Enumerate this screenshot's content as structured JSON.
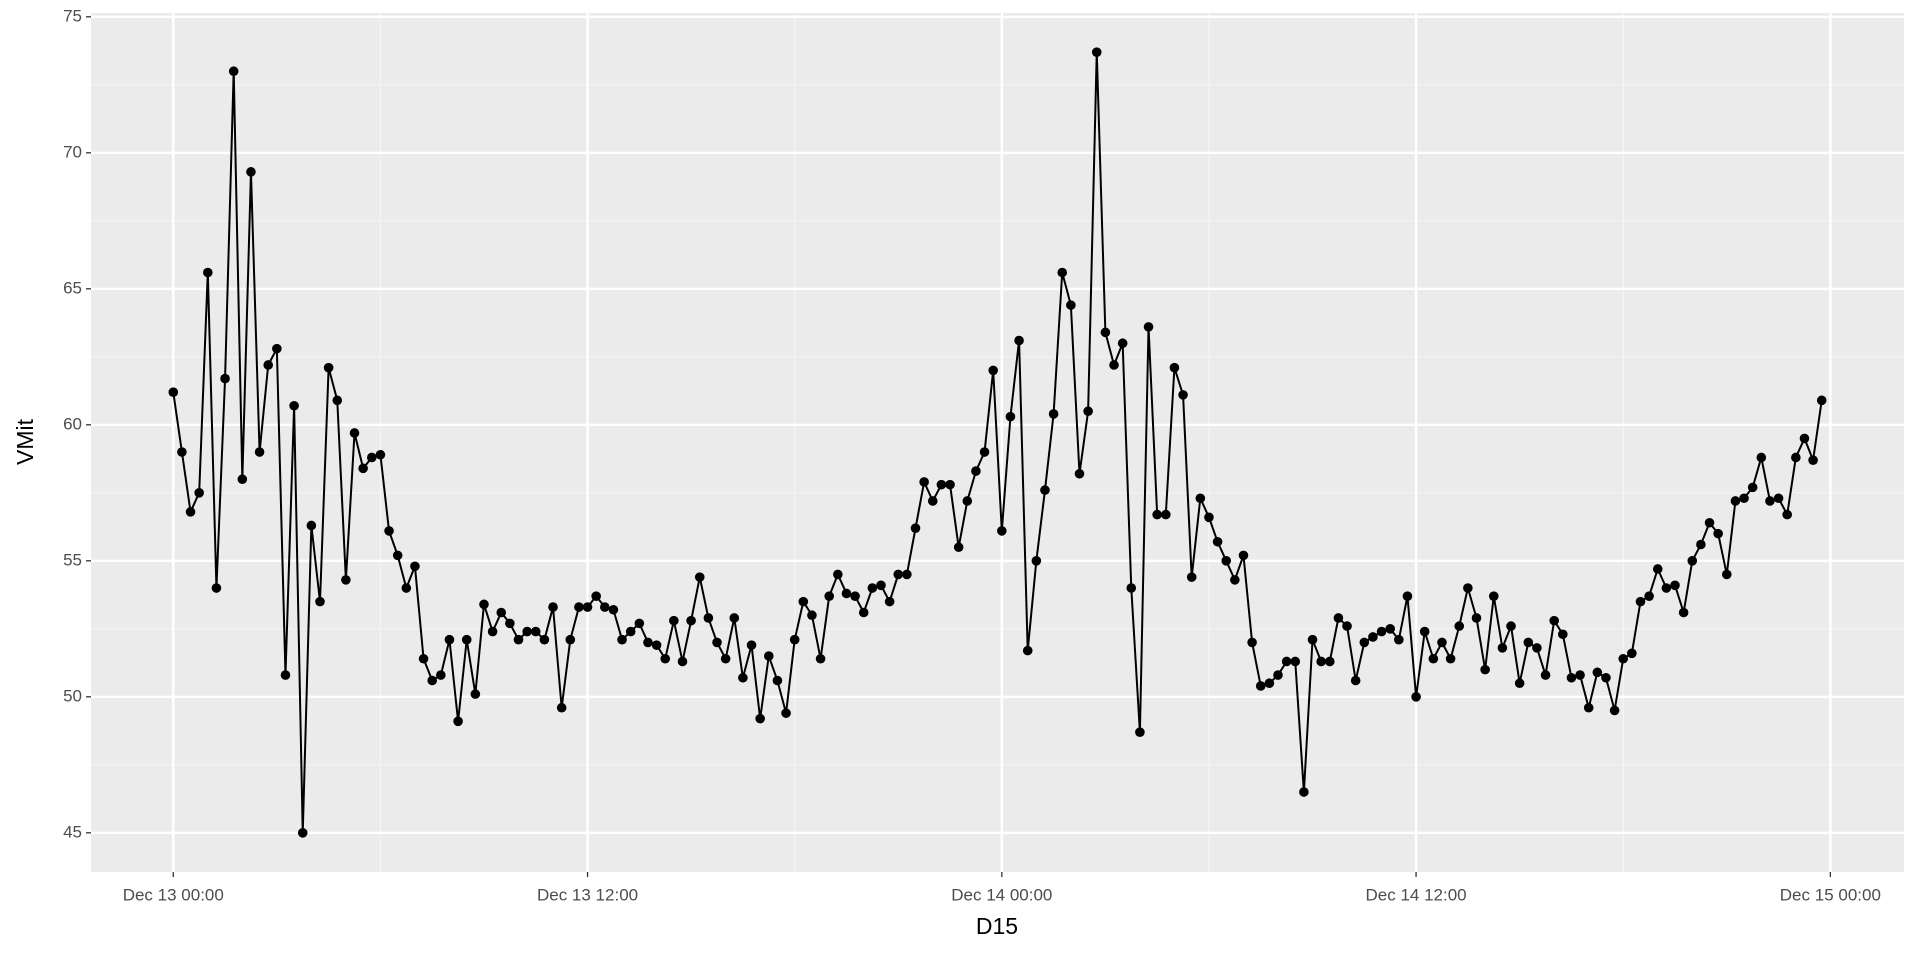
{
  "chart_data": {
    "type": "line",
    "xlabel": "D15",
    "ylabel": "VMit",
    "color": "#000000",
    "grid": true,
    "x": [
      "Dec 13 00:00",
      "Dec 13 00:15",
      "Dec 13 00:30",
      "Dec 13 00:45",
      "Dec 13 01:00",
      "Dec 13 01:15",
      "Dec 13 01:30",
      "Dec 13 01:45",
      "Dec 13 02:00",
      "Dec 13 02:15",
      "Dec 13 02:30",
      "Dec 13 02:45",
      "Dec 13 03:00",
      "Dec 13 03:15",
      "Dec 13 03:30",
      "Dec 13 03:45",
      "Dec 13 04:00",
      "Dec 13 04:15",
      "Dec 13 04:30",
      "Dec 13 04:45",
      "Dec 13 05:00",
      "Dec 13 05:15",
      "Dec 13 05:30",
      "Dec 13 05:45",
      "Dec 13 06:00",
      "Dec 13 06:15",
      "Dec 13 06:30",
      "Dec 13 06:45",
      "Dec 13 07:00",
      "Dec 13 07:15",
      "Dec 13 07:30",
      "Dec 13 07:45",
      "Dec 13 08:00",
      "Dec 13 08:15",
      "Dec 13 08:30",
      "Dec 13 08:45",
      "Dec 13 09:00",
      "Dec 13 09:15",
      "Dec 13 09:30",
      "Dec 13 09:45",
      "Dec 13 10:00",
      "Dec 13 10:15",
      "Dec 13 10:30",
      "Dec 13 10:45",
      "Dec 13 11:00",
      "Dec 13 11:15",
      "Dec 13 11:30",
      "Dec 13 11:45",
      "Dec 13 12:00",
      "Dec 13 12:15",
      "Dec 13 12:30",
      "Dec 13 12:45",
      "Dec 13 13:00",
      "Dec 13 13:15",
      "Dec 13 13:30",
      "Dec 13 13:45",
      "Dec 13 14:00",
      "Dec 13 14:15",
      "Dec 13 14:30",
      "Dec 13 14:45",
      "Dec 13 15:00",
      "Dec 13 15:15",
      "Dec 13 15:30",
      "Dec 13 15:45",
      "Dec 13 16:00",
      "Dec 13 16:15",
      "Dec 13 16:30",
      "Dec 13 16:45",
      "Dec 13 17:00",
      "Dec 13 17:15",
      "Dec 13 17:30",
      "Dec 13 17:45",
      "Dec 13 18:00",
      "Dec 13 18:15",
      "Dec 13 18:30",
      "Dec 13 18:45",
      "Dec 13 19:00",
      "Dec 13 19:15",
      "Dec 13 19:30",
      "Dec 13 19:45",
      "Dec 13 20:00",
      "Dec 13 20:15",
      "Dec 13 20:30",
      "Dec 13 20:45",
      "Dec 13 21:00",
      "Dec 13 21:15",
      "Dec 13 21:30",
      "Dec 13 21:45",
      "Dec 13 22:00",
      "Dec 13 22:15",
      "Dec 13 22:30",
      "Dec 13 22:45",
      "Dec 13 23:00",
      "Dec 13 23:15",
      "Dec 13 23:30",
      "Dec 13 23:45",
      "Dec 14 00:00",
      "Dec 14 00:15",
      "Dec 14 00:30",
      "Dec 14 00:45",
      "Dec 14 01:00",
      "Dec 14 01:15",
      "Dec 14 01:30",
      "Dec 14 01:45",
      "Dec 14 02:00",
      "Dec 14 02:15",
      "Dec 14 02:30",
      "Dec 14 02:45",
      "Dec 14 03:00",
      "Dec 14 03:15",
      "Dec 14 03:30",
      "Dec 14 03:45",
      "Dec 14 04:00",
      "Dec 14 04:15",
      "Dec 14 04:30",
      "Dec 14 04:45",
      "Dec 14 05:00",
      "Dec 14 05:15",
      "Dec 14 05:30",
      "Dec 14 05:45",
      "Dec 14 06:00",
      "Dec 14 06:15",
      "Dec 14 06:30",
      "Dec 14 06:45",
      "Dec 14 07:00",
      "Dec 14 07:15",
      "Dec 14 07:30",
      "Dec 14 07:45",
      "Dec 14 08:00",
      "Dec 14 08:15",
      "Dec 14 08:30",
      "Dec 14 08:45",
      "Dec 14 09:00",
      "Dec 14 09:15",
      "Dec 14 09:30",
      "Dec 14 09:45",
      "Dec 14 10:00",
      "Dec 14 10:15",
      "Dec 14 10:30",
      "Dec 14 10:45",
      "Dec 14 11:00",
      "Dec 14 11:15",
      "Dec 14 11:30",
      "Dec 14 11:45",
      "Dec 14 12:00",
      "Dec 14 12:15",
      "Dec 14 12:30",
      "Dec 14 12:45",
      "Dec 14 13:00",
      "Dec 14 13:15",
      "Dec 14 13:30",
      "Dec 14 13:45",
      "Dec 14 14:00",
      "Dec 14 14:15",
      "Dec 14 14:30",
      "Dec 14 14:45",
      "Dec 14 15:00",
      "Dec 14 15:15",
      "Dec 14 15:30",
      "Dec 14 15:45",
      "Dec 14 16:00",
      "Dec 14 16:15",
      "Dec 14 16:30",
      "Dec 14 16:45",
      "Dec 14 17:00",
      "Dec 14 17:15",
      "Dec 14 17:30",
      "Dec 14 17:45",
      "Dec 14 18:00",
      "Dec 14 18:15",
      "Dec 14 18:30",
      "Dec 14 18:45",
      "Dec 14 19:00",
      "Dec 14 19:15",
      "Dec 14 19:30",
      "Dec 14 19:45",
      "Dec 14 20:00",
      "Dec 14 20:15",
      "Dec 14 20:30",
      "Dec 14 20:45",
      "Dec 14 21:00",
      "Dec 14 21:15",
      "Dec 14 21:30",
      "Dec 14 21:45",
      "Dec 14 22:00",
      "Dec 14 22:15",
      "Dec 14 22:30",
      "Dec 14 22:45",
      "Dec 14 23:00",
      "Dec 14 23:15",
      "Dec 14 23:30",
      "Dec 14 23:45"
    ],
    "values": [
      61.2,
      59.0,
      56.8,
      57.5,
      65.6,
      54.0,
      61.7,
      73.0,
      58.0,
      69.3,
      59.0,
      62.2,
      62.8,
      50.8,
      60.7,
      45.0,
      56.3,
      53.5,
      62.1,
      60.9,
      54.3,
      59.7,
      58.4,
      58.8,
      58.9,
      56.1,
      55.2,
      54.0,
      54.8,
      51.4,
      50.6,
      50.8,
      52.1,
      49.1,
      52.1,
      50.1,
      53.4,
      52.4,
      53.1,
      52.7,
      52.1,
      52.4,
      52.4,
      52.1,
      53.3,
      49.6,
      52.1,
      53.3,
      53.3,
      53.7,
      53.3,
      53.2,
      52.1,
      52.4,
      52.7,
      52.0,
      51.9,
      51.4,
      52.8,
      51.3,
      52.8,
      54.4,
      52.9,
      52.0,
      51.4,
      52.9,
      50.7,
      51.9,
      49.2,
      51.5,
      50.6,
      49.4,
      52.1,
      53.5,
      53.0,
      51.4,
      53.7,
      54.5,
      53.8,
      53.7,
      53.1,
      54.0,
      54.1,
      53.5,
      54.5,
      54.5,
      56.2,
      57.9,
      57.2,
      57.8,
      57.8,
      55.5,
      57.2,
      58.3,
      59.0,
      62.0,
      56.1,
      60.3,
      63.1,
      51.7,
      55.0,
      57.6,
      60.4,
      65.6,
      64.4,
      58.2,
      60.5,
      73.7,
      63.4,
      62.2,
      63.0,
      54.0,
      48.7,
      63.6,
      56.7,
      56.7,
      62.1,
      61.1,
      54.4,
      57.3,
      56.6,
      55.7,
      55.0,
      54.3,
      55.2,
      52.0,
      50.4,
      50.5,
      50.8,
      51.3,
      51.3,
      46.5,
      52.1,
      51.3,
      51.3,
      52.9,
      52.6,
      50.6,
      52.0,
      52.2,
      52.4,
      52.5,
      52.1,
      53.7,
      50.0,
      52.4,
      51.4,
      52.0,
      51.4,
      52.6,
      54.0,
      52.9,
      51.0,
      53.7,
      51.8,
      52.6,
      50.5,
      52.0,
      51.8,
      50.8,
      52.8,
      52.3,
      50.7,
      50.8,
      49.6,
      50.9,
      50.7,
      49.5,
      51.4,
      51.6,
      53.5,
      53.7,
      54.7,
      54.0,
      54.1,
      53.1,
      55.0,
      55.6,
      56.4,
      56.0,
      54.5,
      57.2,
      57.3,
      57.7,
      58.8,
      57.2,
      57.3,
      56.7,
      58.8,
      59.5,
      58.7,
      60.9
    ],
    "xlim": [
      "Dec 12 21:37",
      "Dec 15 02:08"
    ],
    "xticks": [
      "Dec 13 00:00",
      "Dec 13 12:00",
      "Dec 14 00:00",
      "Dec 14 12:00",
      "Dec 15 00:00"
    ],
    "ylim": [
      43.56,
      75.14
    ],
    "yticks": [
      45,
      50,
      55,
      60,
      65,
      70,
      75
    ]
  }
}
